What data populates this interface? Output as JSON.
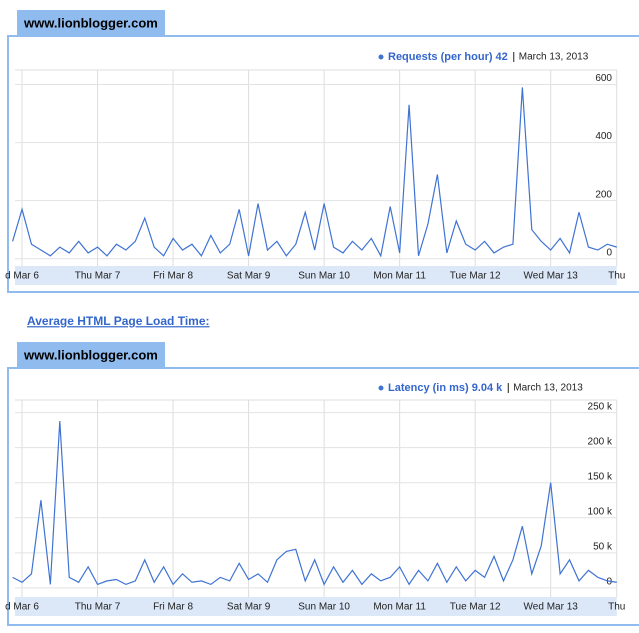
{
  "link": "Average HTML Page Load Time:",
  "chart_data": [
    {
      "type": "line",
      "tab": "www.lionblogger.com",
      "legend_value": "42",
      "legend_date": "March 13, 2013",
      "categories": [
        null,
        "d Mar 6",
        null,
        null,
        null,
        null,
        null,
        null,
        null,
        "Thu Mar 7",
        null,
        null,
        null,
        null,
        null,
        null,
        null,
        "Fri Mar 8",
        null,
        null,
        null,
        null,
        null,
        null,
        null,
        "Sat Mar 9",
        null,
        null,
        null,
        null,
        null,
        null,
        null,
        "Sun Mar 10",
        null,
        null,
        null,
        null,
        null,
        null,
        null,
        "Mon Mar 11",
        null,
        null,
        null,
        null,
        null,
        null,
        null,
        "Tue Mar 12",
        null,
        null,
        null,
        null,
        null,
        null,
        null,
        "Wed Mar 13",
        null,
        null,
        null,
        null,
        null,
        null,
        "Thu"
      ],
      "series": [
        {
          "name": "Requests (per hour)",
          "color": "#3f73d4",
          "values": [
            60,
            170,
            50,
            30,
            10,
            40,
            20,
            60,
            20,
            40,
            10,
            50,
            30,
            60,
            140,
            40,
            10,
            70,
            30,
            50,
            10,
            80,
            20,
            50,
            170,
            10,
            190,
            30,
            60,
            10,
            50,
            160,
            30,
            190,
            40,
            20,
            60,
            30,
            70,
            10,
            180,
            20,
            530,
            10,
            120,
            290,
            20,
            130,
            50,
            30,
            60,
            20,
            40,
            50,
            590,
            100,
            60,
            30,
            70,
            20,
            160,
            40,
            30,
            50,
            40
          ]
        }
      ],
      "ylim": [
        -25,
        650
      ],
      "yticks": [
        0,
        200,
        400,
        600
      ],
      "grid": true
    },
    {
      "type": "line",
      "tab": "www.lionblogger.com",
      "legend_value": "9.04 k",
      "legend_date": "March 13, 2013",
      "categories": [
        null,
        "d Mar 6",
        null,
        null,
        null,
        null,
        null,
        null,
        null,
        "Thu Mar 7",
        null,
        null,
        null,
        null,
        null,
        null,
        null,
        "Fri Mar 8",
        null,
        null,
        null,
        null,
        null,
        null,
        null,
        "Sat Mar 9",
        null,
        null,
        null,
        null,
        null,
        null,
        null,
        "Sun Mar 10",
        null,
        null,
        null,
        null,
        null,
        null,
        null,
        "Mon Mar 11",
        null,
        null,
        null,
        null,
        null,
        null,
        null,
        "Tue Mar 12",
        null,
        null,
        null,
        null,
        null,
        null,
        null,
        "Wed Mar 13",
        null,
        null,
        null,
        null,
        null,
        null,
        "Thu"
      ],
      "series": [
        {
          "name": "Latency (in ms)",
          "color": "#3f73d4",
          "values": [
            15000,
            8000,
            20000,
            125000,
            5000,
            238000,
            15000,
            8000,
            30000,
            5000,
            10000,
            12000,
            5000,
            10000,
            40000,
            8000,
            30000,
            5000,
            20000,
            8000,
            10000,
            5000,
            15000,
            10000,
            35000,
            12000,
            20000,
            8000,
            40000,
            52000,
            55000,
            10000,
            40000,
            5000,
            30000,
            8000,
            25000,
            5000,
            20000,
            10000,
            15000,
            30000,
            5000,
            25000,
            10000,
            35000,
            8000,
            30000,
            10000,
            25000,
            15000,
            45000,
            10000,
            40000,
            88000,
            20000,
            60000,
            150000,
            20000,
            40000,
            10000,
            25000,
            15000,
            10000,
            8000
          ]
        }
      ],
      "ylim": [
        -13000,
        268000
      ],
      "yticks": [
        {
          "value": 0,
          "label": "0"
        },
        {
          "value": 50000,
          "label": "50 k"
        },
        {
          "value": 100000,
          "label": "100 k"
        },
        {
          "value": 150000,
          "label": "150 k"
        },
        {
          "value": 200000,
          "label": "200 k"
        },
        {
          "value": 250000,
          "label": "250 k"
        }
      ],
      "grid": true
    }
  ]
}
